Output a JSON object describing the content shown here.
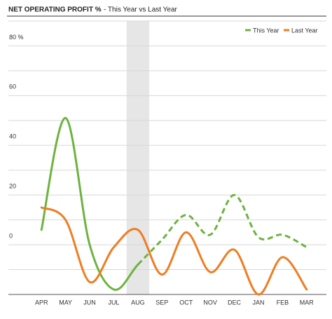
{
  "chart_data": {
    "type": "line",
    "title": "NET OPERATING PROFIT %",
    "subtitle": "- This Year vs Last Year",
    "categories": [
      "APR",
      "MAY",
      "JUN",
      "JUL",
      "AUG",
      "SEP",
      "OCT",
      "NOV",
      "DEC",
      "JAN",
      "FEB",
      "MAR"
    ],
    "series": [
      {
        "name": "This Year",
        "color": "#6db33f",
        "values": [
          6,
          51,
          0,
          -18,
          -8,
          2,
          12,
          4,
          20,
          3,
          4,
          -1
        ],
        "dashed_from": 4
      },
      {
        "name": "Last Year",
        "color": "#ef7d22",
        "values": [
          15,
          10,
          -15,
          -1,
          6,
          -12,
          5,
          -11,
          -2,
          -20,
          -5,
          -18
        ]
      }
    ],
    "highlight_index": 4,
    "ylim": [
      -20,
      90
    ],
    "yticks": [
      0,
      20,
      40,
      60,
      {
        "value": 80,
        "label": "80 %"
      }
    ],
    "minor_yticks": [
      -20,
      -10,
      10,
      30,
      50,
      70,
      90
    ],
    "grid": true,
    "legend": "top-right"
  }
}
